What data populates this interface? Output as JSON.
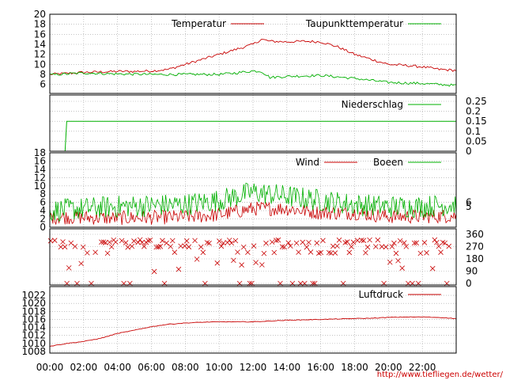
{
  "colors": {
    "red": "#c80000",
    "green": "#00b000",
    "grid": "#a0a0a0",
    "axis": "#000000",
    "credit": "#cc0000"
  },
  "chart_data": {
    "type": "line",
    "x_ticks": [
      "00:00",
      "02:00",
      "04:00",
      "06:00",
      "08:00",
      "10:00",
      "12:00",
      "14:00",
      "16:00",
      "18:00",
      "20:00",
      "22:00"
    ],
    "x_range_hours": [
      0,
      24
    ],
    "panels": {
      "temperature": {
        "type": "line",
        "y_ticks": [
          "6",
          "8",
          "10",
          "12",
          "14",
          "16",
          "18",
          "20"
        ],
        "ylim": [
          5,
          20
        ],
        "series": [
          {
            "name": "Temperatur",
            "color": "red",
            "x": [
              0,
              1,
              2,
              3,
              4,
              5,
              6,
              7,
              8,
              9,
              10,
              10.5,
              11,
              12,
              12.5,
              13,
              14,
              15,
              16,
              17,
              18,
              19,
              20,
              21,
              22,
              23,
              24
            ],
            "y": [
              8,
              8.2,
              8.4,
              8.5,
              8.6,
              8.6,
              8.7,
              9,
              10,
              11,
              12,
              12.5,
              13,
              14,
              15,
              14.6,
              14.5,
              14.6,
              14.5,
              13.5,
              12,
              11,
              10,
              9.8,
              9.5,
              9,
              8.8
            ]
          },
          {
            "name": "Taupunkttemperatur",
            "color": "green",
            "x": [
              0,
              2,
              4,
              6,
              8,
              10,
              11,
              12,
              12.5,
              13,
              14,
              16,
              18,
              20,
              22,
              24
            ],
            "y": [
              7.9,
              8.3,
              8.1,
              8,
              8,
              8,
              8.3,
              8.7,
              8.6,
              7.4,
              7.6,
              7.8,
              7.2,
              6.4,
              6.2,
              5.8
            ]
          }
        ]
      },
      "precipitation": {
        "type": "line",
        "y_ticks_right": [
          "0",
          "0.05",
          "0.1",
          "0.15",
          "0.2",
          "0.25"
        ],
        "ylim": [
          0,
          0.25
        ],
        "series": [
          {
            "name": "Niederschlag",
            "color": "green",
            "x": [
              0,
              0.9,
              1,
              24
            ],
            "y": [
              0,
              0,
              0.15,
              0.15
            ]
          }
        ]
      },
      "wind": {
        "type": "line",
        "y_ticks_left": [
          "0",
          "2",
          "4",
          "6",
          "8",
          "10",
          "12",
          "14",
          "16",
          "18"
        ],
        "y_ticks_right": [
          "5",
          "6"
        ],
        "ylim": [
          0,
          18
        ],
        "series": [
          {
            "name": "Wind",
            "color": "red",
            "values": [
              0.5,
              6.5
            ],
            "trend": [
              [
                0,
                2.5
              ],
              [
                4,
                2.2
              ],
              [
                8,
                2.5
              ],
              [
                10,
                3
              ],
              [
                12,
                4.5
              ],
              [
                14,
                4.5
              ],
              [
                16,
                3.5
              ],
              [
                18,
                3.5
              ],
              [
                20,
                2.6
              ],
              [
                22,
                2.6
              ],
              [
                24,
                2.8
              ]
            ]
          },
          {
            "name": "Boeen",
            "color": "green",
            "values": [
              1,
              12.5
            ],
            "trend": [
              [
                0,
                4
              ],
              [
                4,
                5
              ],
              [
                8,
                5.5
              ],
              [
                10,
                6.5
              ],
              [
                12,
                8.5
              ],
              [
                14,
                7.5
              ],
              [
                16,
                6.5
              ],
              [
                18,
                5.5
              ],
              [
                20,
                5
              ],
              [
                22,
                5
              ],
              [
                24,
                5.5
              ]
            ]
          }
        ]
      },
      "direction": {
        "type": "scatter",
        "y_ticks_right": [
          "0",
          "90",
          "180",
          "270",
          "360"
        ],
        "ylim": [
          0,
          360
        ],
        "series": [
          {
            "name": "",
            "color": "red",
            "marker": "x"
          }
        ]
      },
      "pressure": {
        "type": "line",
        "y_ticks": [
          "1008",
          "1010",
          "1012",
          "1014",
          "1016",
          "1018",
          "1020",
          "1022"
        ],
        "ylim": [
          1008,
          1023
        ],
        "series": [
          {
            "name": "Luftdruck",
            "color": "red",
            "x": [
              0,
              1,
              2,
              3,
              4,
              5,
              6,
              7,
              8,
              9,
              10,
              11,
              12,
              13,
              14,
              15,
              16,
              17,
              18,
              19,
              20,
              21,
              22,
              23,
              24
            ],
            "y": [
              1009.3,
              1010,
              1010.5,
              1011.3,
              1012.5,
              1013.3,
              1014.2,
              1014.8,
              1015.1,
              1015.3,
              1015.4,
              1015.4,
              1015.4,
              1015.6,
              1015.8,
              1015.9,
              1016,
              1016.1,
              1016.2,
              1016.3,
              1016.5,
              1016.6,
              1016.6,
              1016.5,
              1016.2
            ]
          }
        ]
      }
    }
  },
  "credit": "http://www.tiefliegen.de/wetter/"
}
